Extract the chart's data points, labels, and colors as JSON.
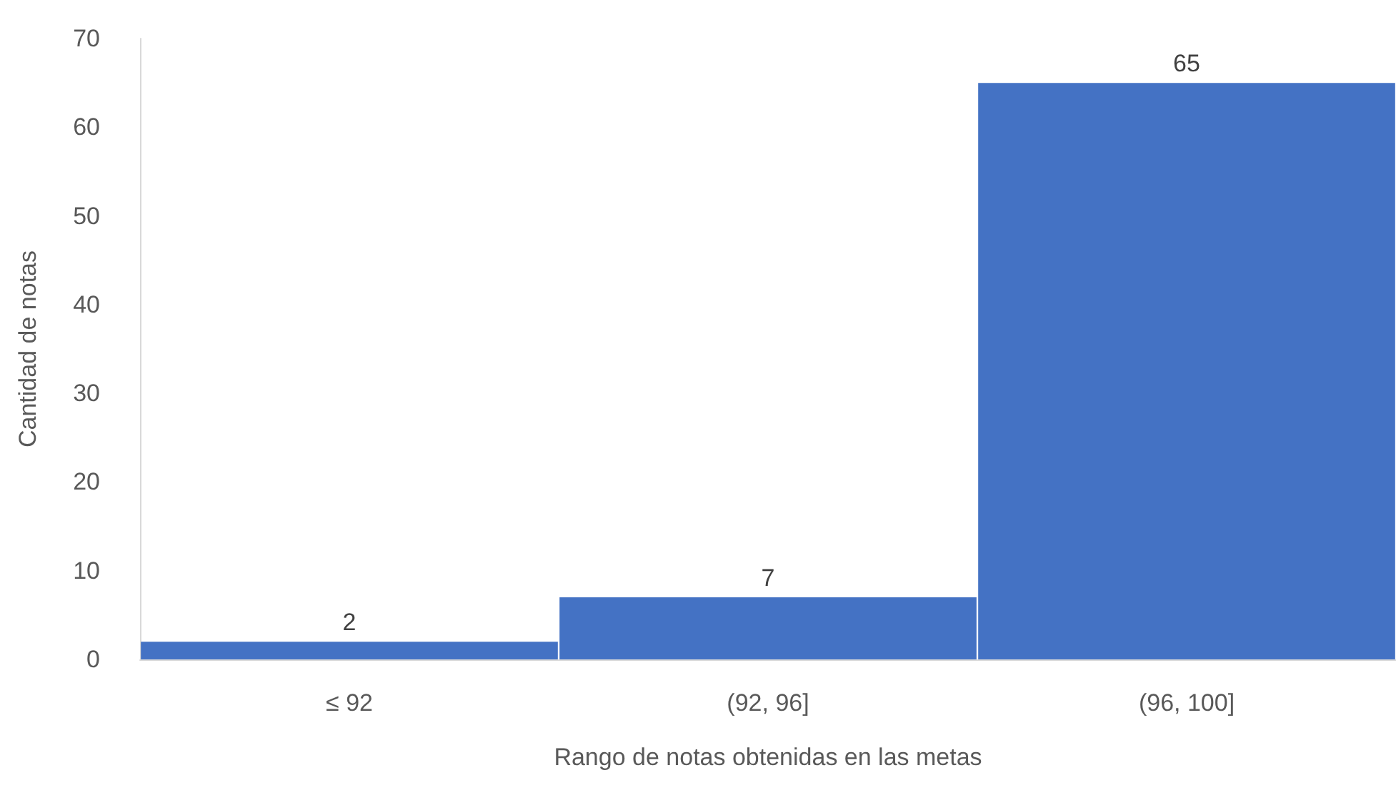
{
  "chart_data": {
    "type": "bar",
    "xlabel": "Rango de notas obtenidas en las metas",
    "ylabel": "Cantidad de notas",
    "categories": [
      "≤ 92",
      "(92, 96]",
      "(96, 100]"
    ],
    "values": [
      2,
      7,
      65
    ],
    "color": "#4472c4",
    "ylim": [
      0,
      70
    ],
    "yticks": [
      0,
      10,
      20,
      30,
      40,
      50,
      60,
      70
    ],
    "grid": false,
    "data_labels": true
  }
}
